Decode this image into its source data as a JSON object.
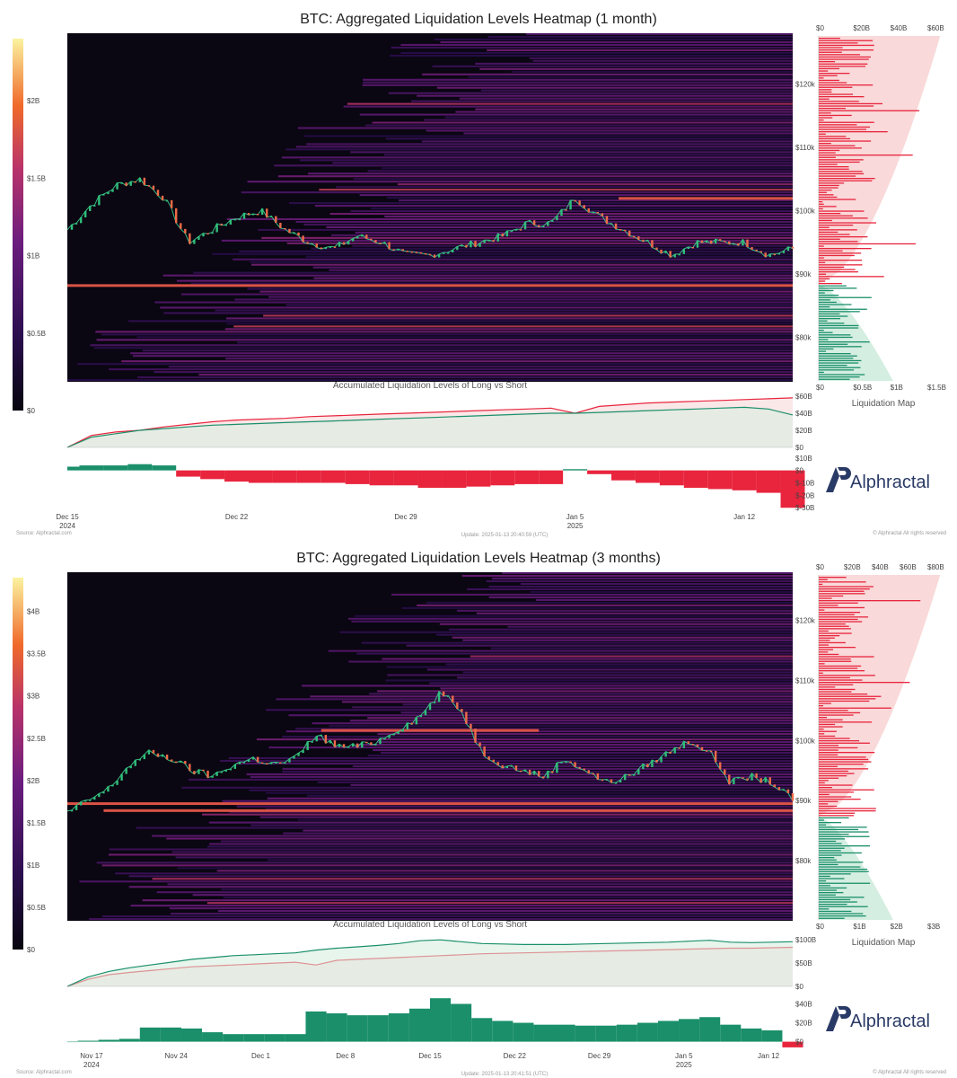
{
  "chart_data": [
    {
      "type": "heatmap",
      "title": "BTC: Aggregated Liquidation Levels Heatmap (1 month)",
      "subchart_title": "Accumulated Liquidation Levels of Long vs Short",
      "side_panel_label": "Liquidation Map",
      "brand": "Alphractal",
      "footer_left": "Source: Alphractal.com",
      "footer_mid": "Update: 2025-01-13 20:40:59 (UTC)",
      "footer_right": "© Alphractal All rights reserved",
      "colorbar": {
        "ticks": [
          "$2B",
          "$1.5B",
          "$1B",
          "$0.5B",
          "$0"
        ],
        "tick_values": [
          2,
          1.5,
          1,
          0.5,
          0
        ],
        "max": 2.4
      },
      "price_axis": {
        "ticks": [
          "$120k",
          "$110k",
          "$100k",
          "$90k",
          "$80k"
        ],
        "tick_values": [
          120,
          110,
          100,
          90,
          80
        ],
        "ylim": [
          73,
          128
        ]
      },
      "liq_map_top_axis": {
        "ticks": [
          "$0",
          "$20B",
          "$40B",
          "$60B"
        ],
        "tick_values": [
          0,
          20,
          40,
          60
        ]
      },
      "liq_map_bottom_axis": {
        "ticks": [
          "$0",
          "$0.5B",
          "$1B",
          "$1.5B"
        ],
        "tick_values": [
          0,
          0.5,
          1,
          1.5
        ]
      },
      "x_axis": {
        "ticks": [
          "Dec 15",
          "Dec 22",
          "Dec 29",
          "Jan 5",
          "Jan 12"
        ],
        "tick_days": [
          0,
          7,
          14,
          21,
          28
        ],
        "year_labels": [
          {
            "text": "2024",
            "day": 0
          },
          {
            "text": "2025",
            "day": 21
          }
        ],
        "xlim": [
          0,
          30
        ]
      },
      "price_series": [
        97,
        101,
        104,
        105,
        102,
        95,
        97,
        99,
        100,
        97,
        95,
        94,
        96,
        95,
        93,
        93,
        94,
        95,
        96,
        98,
        98,
        102,
        99,
        97,
        95,
        93,
        95,
        95,
        95,
        93,
        94
      ],
      "accum_axis": {
        "ticks": [
          "$60B",
          "$40B",
          "$20B",
          "$0"
        ],
        "tick_values": [
          60,
          40,
          20,
          0
        ],
        "ylim": [
          0,
          60
        ]
      },
      "accum_long": [
        0,
        12,
        16,
        20,
        22,
        24,
        26,
        27,
        28,
        29,
        30,
        31,
        32,
        33,
        34,
        35,
        36,
        37,
        38,
        39,
        40,
        40,
        41,
        42,
        43,
        44,
        45,
        46,
        47,
        45,
        38
      ],
      "accum_short": [
        0,
        14,
        18,
        20,
        24,
        27,
        30,
        32,
        33,
        34,
        36,
        37,
        38,
        39,
        40,
        41,
        42,
        43,
        44,
        45,
        46,
        40,
        48,
        50,
        52,
        53,
        54,
        55,
        56,
        57,
        58
      ],
      "delta_axis": {
        "ticks": [
          "$10B",
          "$0",
          "$-10B",
          "$-20B",
          "$-30B"
        ],
        "tick_values": [
          10,
          0,
          -10,
          -20,
          -30
        ],
        "ylim": [
          -32,
          12
        ]
      },
      "delta": [
        3,
        4,
        4,
        5,
        4,
        -5,
        -7,
        -9,
        -10,
        -10,
        -10,
        -10,
        -11,
        -12,
        -12,
        -14,
        -14,
        -13,
        -12,
        -11,
        -11,
        1,
        -3,
        -8,
        -10,
        -12,
        -14,
        -15,
        -16,
        -18,
        -30
      ],
      "short_color": "#e8253d",
      "long_color": "#1a8f6a"
    },
    {
      "type": "heatmap",
      "title": "BTC: Aggregated Liquidation Levels Heatmap (3 months)",
      "subchart_title": "Accumulated Liquidation Levels of Long vs Short",
      "side_panel_label": "Liquidation Map",
      "brand": "Alphractal",
      "footer_left": "Source: Alphractal.com",
      "footer_mid": "Update: 2025-01-13 20:41:51 (UTC)",
      "footer_right": "© Alphractal All rights reserved",
      "colorbar": {
        "ticks": [
          "$4B",
          "$3.5B",
          "$3B",
          "$2.5B",
          "$2B",
          "$1.5B",
          "$1B",
          "$0.5B",
          "$0"
        ],
        "tick_values": [
          4,
          3.5,
          3,
          2.5,
          2,
          1.5,
          1,
          0.5,
          0
        ],
        "max": 4.4
      },
      "price_axis": {
        "ticks": [
          "$120k",
          "$110k",
          "$100k",
          "$90k",
          "$80k"
        ],
        "tick_values": [
          120,
          110,
          100,
          90,
          80
        ],
        "ylim": [
          70,
          128
        ]
      },
      "liq_map_top_axis": {
        "ticks": [
          "$0",
          "$20B",
          "$40B",
          "$60B",
          "$80B"
        ],
        "tick_values": [
          0,
          20,
          40,
          60,
          80
        ]
      },
      "liq_map_bottom_axis": {
        "ticks": [
          "$0",
          "$1B",
          "$2B",
          "$3B"
        ],
        "tick_values": [
          0,
          1,
          2,
          3
        ]
      },
      "x_axis": {
        "ticks": [
          "Nov 17",
          "Nov 24",
          "Dec 1",
          "Dec 8",
          "Dec 15",
          "Dec 22",
          "Dec 29",
          "Jan 5",
          "Jan 12"
        ],
        "tick_days": [
          0,
          7,
          14,
          21,
          28,
          35,
          42,
          49,
          56
        ],
        "year_labels": [
          {
            "text": "2024",
            "day": 0
          },
          {
            "text": "2025",
            "day": 49
          }
        ],
        "xlim": [
          -2,
          58
        ]
      },
      "price_series": [
        88,
        90,
        92,
        96,
        98,
        97,
        95,
        94,
        96,
        97,
        96,
        97,
        101,
        99,
        99,
        100,
        102,
        104,
        108,
        105,
        98,
        96,
        95,
        94,
        97,
        95,
        93,
        94,
        96,
        98,
        100,
        98,
        93,
        94,
        93,
        90
      ],
      "accum_axis": {
        "ticks": [
          "$100B",
          "$50B",
          "$0"
        ],
        "tick_values": [
          100,
          50,
          0
        ],
        "ylim": [
          0,
          110
        ]
      },
      "accum_long": [
        0,
        20,
        32,
        40,
        46,
        52,
        58,
        62,
        66,
        68,
        70,
        72,
        78,
        82,
        85,
        88,
        92,
        98,
        100,
        96,
        92,
        91,
        90,
        90,
        90,
        91,
        92,
        93,
        94,
        95,
        97,
        99,
        95,
        94,
        95,
        96
      ],
      "accum_short": [
        0,
        15,
        25,
        30,
        34,
        38,
        42,
        44,
        46,
        48,
        50,
        52,
        46,
        56,
        58,
        60,
        62,
        64,
        66,
        68,
        70,
        71,
        72,
        73,
        74,
        75,
        76,
        77,
        78,
        79,
        80,
        81,
        82,
        82,
        83,
        84
      ],
      "delta_axis": {
        "ticks": [
          "$40B",
          "$20B",
          "$0"
        ],
        "tick_values": [
          40,
          20,
          0
        ],
        "ylim": [
          -8,
          50
        ]
      },
      "delta": [
        0,
        1,
        2,
        3,
        15,
        15,
        14,
        10,
        8,
        8,
        8,
        8,
        32,
        30,
        28,
        28,
        30,
        35,
        46,
        40,
        25,
        22,
        20,
        18,
        18,
        17,
        17,
        18,
        20,
        22,
        24,
        26,
        18,
        14,
        12,
        -6
      ],
      "short_color": "#e8253d",
      "long_color": "#1a8f6a"
    }
  ]
}
